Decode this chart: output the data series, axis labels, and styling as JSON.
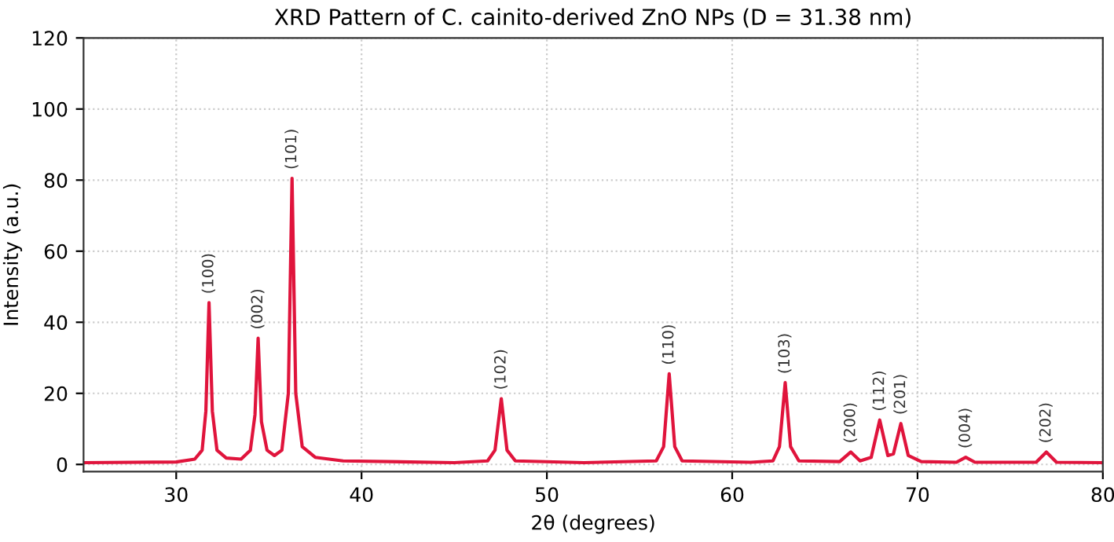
{
  "chart_data": {
    "type": "line",
    "title": "XRD Pattern of C. cainito-derived ZnO NPs (D = 31.38 nm)",
    "xlabel": "2θ (degrees)",
    "ylabel": "Intensity (a.u.)",
    "series": [
      {
        "color": "#e0143c",
        "x": [
          25,
          30,
          31.0,
          31.4,
          31.6,
          31.77,
          31.95,
          32.2,
          32.7,
          33.5,
          34.0,
          34.25,
          34.42,
          34.6,
          34.9,
          35.3,
          35.7,
          36.05,
          36.25,
          36.45,
          36.8,
          37.5,
          39,
          45,
          46.8,
          47.2,
          47.54,
          47.85,
          48.3,
          52,
          55.9,
          56.3,
          56.6,
          56.9,
          57.3,
          61,
          62.2,
          62.55,
          62.86,
          63.15,
          63.6,
          65.8,
          66.4,
          66.9,
          67.5,
          67.96,
          68.4,
          68.7,
          69.1,
          69.5,
          70.2,
          72.1,
          72.6,
          73.1,
          76.4,
          76.95,
          77.5,
          80
        ],
        "values": [
          0.5,
          0.7,
          1.5,
          4,
          15,
          45.5,
          15,
          4,
          1.8,
          1.5,
          4,
          14,
          35.5,
          12,
          4,
          2.5,
          4,
          20,
          80.5,
          20,
          5,
          2,
          1,
          0.5,
          1,
          4,
          18.5,
          4,
          1,
          0.5,
          1,
          5,
          25.5,
          5,
          1,
          0.6,
          1,
          5,
          23,
          5,
          1,
          0.8,
          3.5,
          1,
          2,
          12.5,
          2.5,
          3,
          11.5,
          2.5,
          0.8,
          0.6,
          2,
          0.6,
          0.6,
          3.5,
          0.6,
          0.5
        ]
      }
    ],
    "annotations": [
      {
        "text": "(100)",
        "x": 31.77,
        "y": 45.5
      },
      {
        "text": "(002)",
        "x": 34.42,
        "y": 35.5
      },
      {
        "text": "(101)",
        "x": 36.25,
        "y": 80.5
      },
      {
        "text": "(102)",
        "x": 47.54,
        "y": 18.5
      },
      {
        "text": "(110)",
        "x": 56.6,
        "y": 25.5
      },
      {
        "text": "(103)",
        "x": 62.86,
        "y": 23
      },
      {
        "text": "(200)",
        "x": 66.4,
        "y": 3.5
      },
      {
        "text": "(112)",
        "x": 67.96,
        "y": 12.5
      },
      {
        "text": "(201)",
        "x": 69.1,
        "y": 11.5
      },
      {
        "text": "(004)",
        "x": 72.6,
        "y": 2
      },
      {
        "text": "(202)",
        "x": 76.95,
        "y": 3.5
      }
    ],
    "xlim": [
      25,
      80
    ],
    "xticks": [
      30,
      40,
      50,
      60,
      70,
      80
    ],
    "ylim": [
      -2,
      120
    ],
    "yticks": [
      0,
      20,
      40,
      60,
      80,
      100,
      120
    ],
    "grid": true,
    "line_style": "solid",
    "marker": "none"
  }
}
